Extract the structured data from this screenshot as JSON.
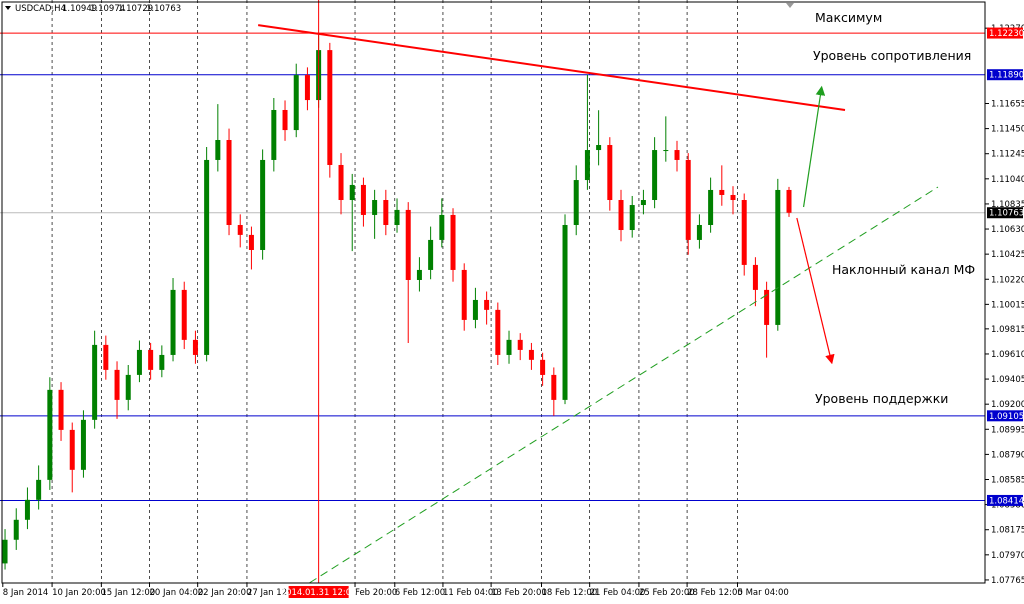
{
  "chart_data": {
    "type": "candlestick",
    "symbol": "USDCAD,H4",
    "open": [
      1.079,
      1.08093,
      1.08256,
      1.08419,
      1.08582,
      1.09317,
      1.0899,
      1.08664,
      1.09072,
      1.09684,
      1.0948,
      1.09235,
      1.09439,
      1.09643,
      1.0948,
      1.09602,
      1.10133,
      1.09725,
      1.09602,
      1.11194,
      1.11357,
      1.10663,
      1.10582,
      1.10459,
      1.11194,
      1.11602,
      1.11438,
      1.11887,
      1.11683,
      1.12091,
      1.11153,
      1.10867,
      1.1099,
      1.10745,
      1.10867,
      1.10663,
      1.10786,
      1.10214,
      1.10296,
      1.10541,
      1.10745,
      1.10296,
      1.09888,
      1.10051,
      1.0997,
      1.09602,
      1.09725,
      1.09643,
      1.09562,
      1.09439,
      1.09235,
      1.10663,
      1.1103,
      1.11275,
      1.11316,
      1.10867,
      1.10622,
      1.10826,
      1.10867,
      1.11275,
      1.11275,
      1.11194,
      1.10541,
      1.10663,
      1.10949,
      1.10908,
      1.10867,
      1.10337,
      1.10133,
      1.09847,
      1.10949
    ],
    "high": [
      1.0818,
      1.0835,
      1.0852,
      1.087,
      1.0942,
      1.0938,
      1.0905,
      1.0915,
      1.098,
      1.0976,
      1.0955,
      1.0952,
      1.0972,
      1.097,
      1.0968,
      1.1023,
      1.102,
      1.098,
      1.113,
      1.1165,
      1.1145,
      1.1075,
      1.1065,
      1.1128,
      1.117,
      1.1168,
      1.1198,
      1.1195,
      1.1223,
      1.1215,
      1.1125,
      1.1108,
      1.1105,
      1.1095,
      1.1095,
      1.1088,
      1.1085,
      1.104,
      1.1065,
      1.1088,
      1.108,
      1.1035,
      1.1015,
      1.1012,
      1.1003,
      1.098,
      1.0978,
      1.097,
      1.0962,
      1.095,
      1.1075,
      1.1115,
      1.1189,
      1.116,
      1.1138,
      1.1095,
      1.109,
      1.1095,
      1.1138,
      1.1155,
      1.1135,
      1.1125,
      1.1075,
      1.1105,
      1.1115,
      1.1098,
      1.1092,
      1.104,
      1.102,
      1.1104,
      1.10974
    ],
    "low": [
      1.0785,
      1.0801,
      1.0818,
      1.0834,
      1.085,
      1.089,
      1.0848,
      1.086,
      1.09,
      1.094,
      1.0908,
      1.0915,
      1.0938,
      1.094,
      1.0942,
      1.0955,
      1.0965,
      1.0953,
      1.0955,
      1.111,
      1.1058,
      1.1048,
      1.103,
      1.1038,
      1.111,
      1.1135,
      1.1138,
      1.116,
      1.1162,
      1.1105,
      1.1075,
      1.1045,
      1.1065,
      1.1055,
      1.1058,
      1.106,
      1.097,
      1.1012,
      1.1022,
      1.1048,
      1.102,
      1.098,
      1.0982,
      1.0985,
      1.0952,
      1.0953,
      1.0956,
      1.0948,
      1.0935,
      1.09105,
      1.092,
      1.1058,
      1.1095,
      1.1115,
      1.1078,
      1.1053,
      1.1056,
      1.1075,
      1.108,
      1.1118,
      1.111,
      1.1042,
      1.1047,
      1.106,
      1.1082,
      1.1075,
      1.1025,
      1.1,
      1.0958,
      1.098,
      1.10729
    ],
    "close": [
      1.08093,
      1.08256,
      1.08419,
      1.08582,
      1.09317,
      1.0899,
      1.08664,
      1.09072,
      1.09684,
      1.0948,
      1.09235,
      1.09439,
      1.09643,
      1.0948,
      1.09602,
      1.10133,
      1.09725,
      1.09602,
      1.11194,
      1.11357,
      1.10663,
      1.10582,
      1.10459,
      1.11194,
      1.11602,
      1.11438,
      1.11887,
      1.11683,
      1.12091,
      1.11153,
      1.10867,
      1.1099,
      1.10745,
      1.10867,
      1.10663,
      1.10786,
      1.10214,
      1.10296,
      1.10541,
      1.10745,
      1.10296,
      1.09888,
      1.10051,
      1.0997,
      1.09602,
      1.09725,
      1.09643,
      1.09562,
      1.09439,
      1.09235,
      1.10663,
      1.1103,
      1.11275,
      1.11316,
      1.10867,
      1.10622,
      1.10826,
      1.10867,
      1.11275,
      1.11275,
      1.11194,
      1.10541,
      1.10663,
      1.10949,
      1.10908,
      1.10867,
      1.10337,
      1.10133,
      1.09847,
      1.10949,
      1.10763
    ],
    "up_color": "#008000",
    "down_color": "#ff0000",
    "xlim": [
      -0.45,
      87.5
    ],
    "ylim": [
      1.0774,
      1.125
    ],
    "xticks": [
      {
        "value": -0.2,
        "label": "8 Jan 2014"
      },
      {
        "value": 4.2,
        "label": "10 Jan 20:00"
      },
      {
        "value": 8.6,
        "label": "15 Jan 12:00"
      },
      {
        "value": 12.9,
        "label": "20 Jan 04:00"
      },
      {
        "value": 17.2,
        "label": "22 Jan 20:00"
      },
      {
        "value": 21.6,
        "label": "27 Jan 12:00"
      },
      {
        "value": 31.25,
        "label": "Feb 20:00"
      },
      {
        "value": 34.8,
        "label": "6 Feb 12:00"
      },
      {
        "value": 39.1,
        "label": "11 Feb 04:00"
      },
      {
        "value": 43.4,
        "label": "13 Feb 20:00"
      },
      {
        "value": 47.9,
        "label": "18 Feb 12:00"
      },
      {
        "value": 52.2,
        "label": "21 Feb 04:00"
      },
      {
        "value": 56.6,
        "label": "25 Feb 20:00"
      },
      {
        "value": 60.9,
        "label": "28 Feb 12:00"
      },
      {
        "value": 65.4,
        "label": "5 Mar 04:00"
      }
    ],
    "crosshair": {
      "value": 28,
      "label": "2014.01.31 12:00",
      "color": "#ff0000"
    },
    "yticks": [
      {
        "value": 1.1227,
        "label": "1.12270"
      },
      1.11655,
      {
        "value": 1.1145,
        "label": "1.11450"
      },
      1.11245,
      {
        "value": 1.1104,
        "label": "1.11040"
      },
      1.10835,
      {
        "value": 1.1063,
        "label": "1.10630"
      },
      1.10425,
      {
        "value": 1.1022,
        "label": "1.10220"
      },
      1.10015,
      1.09815,
      {
        "value": 1.0961,
        "label": "1.09610"
      },
      1.09405,
      {
        "value": 1.092,
        "label": "1.09200"
      },
      1.08995,
      {
        "value": 1.0879,
        "label": "1.08790"
      },
      1.08585,
      {
        "value": 1.0838,
        "label": "1.08380"
      },
      1.08175,
      {
        "value": 1.0797,
        "label": "1.07970"
      },
      1.07765
    ],
    "grid": true,
    "levels": [
      {
        "value": 1.1223,
        "label": "1.12230",
        "color": "#ff0000"
      },
      {
        "value": 1.1189,
        "label": "1.11890",
        "color": "#0000cd"
      },
      {
        "value": 1.09105,
        "label": "1.09105",
        "color": "#0000cd"
      },
      {
        "value": 1.08414,
        "label": "1.08414",
        "color": "#0000cd"
      }
    ],
    "trendlines": [
      {
        "x": [
          22.6,
          75.0
        ],
        "y": [
          1.12295,
          1.11602
        ],
        "color": "#ff0000",
        "style": "solid",
        "arrow": false
      },
      {
        "x": [
          27.2,
          83.3
        ],
        "y": [
          1.07742,
          1.10973
        ],
        "color": "#1f9e1f",
        "style": "dashed",
        "arrow": false
      },
      {
        "x": [
          70.7,
          73.8
        ],
        "y": [
          1.1072,
          1.09545
        ],
        "color": "#ff0000",
        "style": "solid",
        "arrow": true
      },
      {
        "x": [
          71.3,
          72.9
        ],
        "y": [
          1.1081,
          1.11781
        ],
        "color": "#1f9e1f",
        "style": "solid",
        "arrow": true
      }
    ],
    "annotations": [
      "Максимум",
      "Уровень сопротивления",
      "Наклонный канал МФ",
      "Уровень поддержки"
    ]
  }
}
